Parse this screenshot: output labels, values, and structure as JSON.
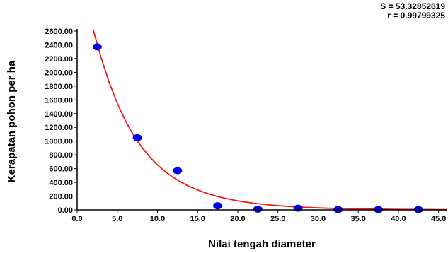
{
  "stats": {
    "s_text": "S = 53.32852619",
    "r_text": "r = 0.99799325"
  },
  "chart_data": {
    "type": "scatter",
    "xlabel": "Nilai tengah diameter",
    "ylabel": "Kerapatan pohon per ha",
    "xlim": [
      0,
      46
    ],
    "ylim": [
      0,
      2600
    ],
    "x_ticks": [
      "0.0",
      "5.0",
      "10.0",
      "15.0",
      "20.0",
      "25.0",
      "30.0",
      "35.0",
      "40.0",
      "45.0"
    ],
    "y_ticks": [
      "0.00",
      "200.00",
      "400.00",
      "600.00",
      "800.00",
      "1000.00",
      "1200.00",
      "1400.00",
      "1600.00",
      "1800.00",
      "2000.00",
      "2200.00",
      "2400.00",
      "2600.00"
    ],
    "series": [
      {
        "kind": "points",
        "color": "#0000ee",
        "x": [
          2.5,
          7.5,
          12.5,
          17.5,
          22.5,
          27.5,
          32.5,
          37.5,
          42.5
        ],
        "y": [
          2370,
          1050,
          570,
          60,
          10,
          25,
          5,
          5,
          5
        ]
      },
      {
        "kind": "fitted-curve",
        "color": "#ee1c1c",
        "x": [
          2.0,
          3.0,
          4.0,
          5.0,
          6.0,
          7.0,
          8.0,
          9.0,
          10.0,
          11.0,
          12.0,
          13.0,
          14.0,
          15.0,
          16.0,
          17.0,
          18.0,
          19.0,
          20.0,
          22.0,
          24.0,
          26.0,
          28.0,
          30.0,
          32.0,
          35.0,
          40.0,
          46.0
        ],
        "y": [
          2660,
          2210,
          1850,
          1550,
          1300,
          1090,
          920,
          775,
          655,
          555,
          470,
          400,
          340,
          290,
          247,
          211,
          180,
          154,
          132,
          97,
          72,
          53,
          39,
          29,
          22,
          14,
          7,
          3
        ]
      }
    ],
    "grid": false
  }
}
